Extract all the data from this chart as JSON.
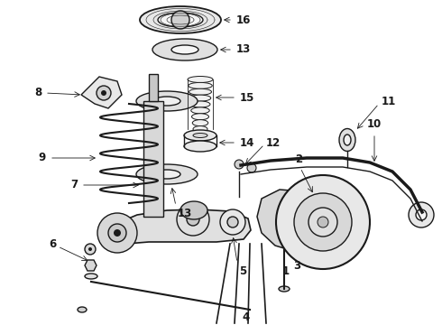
{
  "background_color": "#ffffff",
  "line_color": "#1a1a1a",
  "figsize": [
    4.9,
    3.6
  ],
  "dpi": 100,
  "label_fontsize": 8.5,
  "arrow_lw": 0.6,
  "main_lw": 1.0
}
